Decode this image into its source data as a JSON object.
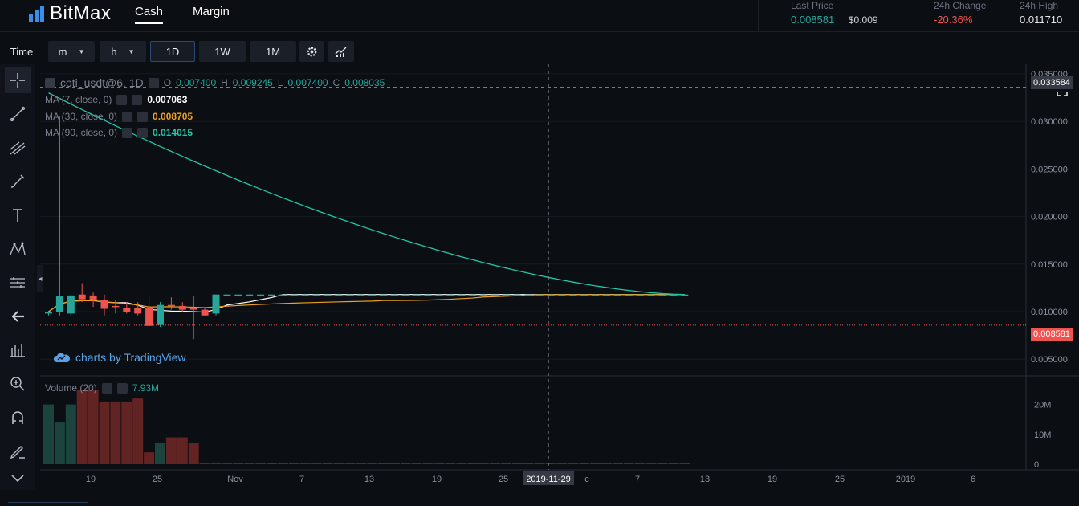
{
  "brand": {
    "name": "BitMax",
    "accent": "#3a8ee6"
  },
  "nav": {
    "cash": "Cash",
    "margin": "Margin"
  },
  "stats": {
    "last_price_label": "Last Price",
    "last_price": "0.008581",
    "last_price_usd": "$0.009",
    "change_label": "24h Change",
    "change": "-20.36%",
    "high_label": "24h High",
    "high": "0.011710"
  },
  "toolbar": {
    "time": "Time",
    "minute": "m",
    "hour": "h",
    "day": "1D",
    "week": "1W",
    "month": "1M",
    "settings_icon": "gear-icon",
    "indicators_icon": "chart-style-icon",
    "fullscreen_icon": "fullscreen-icon"
  },
  "legend": {
    "symbol": "coti_usdt@6, 1D",
    "open_label": "O",
    "open": "0.007400",
    "high_label": "H",
    "high": "0.009245",
    "low_label": "L",
    "low": "0.007400",
    "close_label": "C",
    "close": "0.008035",
    "ma7_label": "MA (7, close, 0)",
    "ma7": "0.007063",
    "ma30_label": "MA (30, close, 0)",
    "ma30": "0.008705",
    "ma90_label": "MA (90, close, 0)",
    "ma90": "0.014015",
    "volume_label": "Volume (20)",
    "volume": "7.93M"
  },
  "watermark": "charts by TradingView",
  "colors": {
    "up": "#26a69a",
    "down": "#ef5350",
    "ma7": "#ffffff",
    "ma30": "#f0a020",
    "ma90": "#1fc9a8",
    "crosshair_tag": "#363a45",
    "price_tag": "#ef5350"
  },
  "price_axis": {
    "ticks": [
      "0.035000",
      "0.030000",
      "0.025000",
      "0.020000",
      "0.015000",
      "0.010000",
      "0.005000"
    ],
    "crosshair_value": "0.033584",
    "current_value": "0.008581"
  },
  "volume_axis": {
    "ticks": [
      "20M",
      "10M",
      "0"
    ]
  },
  "time_axis": {
    "labels": [
      "19",
      "25",
      "Nov",
      "7",
      "13",
      "19",
      "25",
      "c",
      "7",
      "13",
      "19",
      "25",
      "2019",
      "6"
    ],
    "crosshair_date": "2019-11-29"
  },
  "chart_data": {
    "type": "candlestick",
    "symbol": "coti_usdt@6",
    "interval": "1D",
    "y_range": [
      0.0035,
      0.0355
    ],
    "volume_range_millions": [
      0,
      25
    ],
    "candles": [
      {
        "o": 0.0098,
        "h": 0.01,
        "l": 0.0096,
        "c": 0.01,
        "v": 20
      },
      {
        "o": 0.01,
        "h": 0.0305,
        "l": 0.0096,
        "c": 0.0116,
        "v": 14
      },
      {
        "o": 0.0098,
        "h": 0.0118,
        "l": 0.0095,
        "c": 0.0117,
        "v": 20
      },
      {
        "o": 0.0118,
        "h": 0.013,
        "l": 0.011,
        "c": 0.0113,
        "v": 25
      },
      {
        "o": 0.0117,
        "h": 0.012,
        "l": 0.0105,
        "c": 0.0112,
        "v": 25
      },
      {
        "o": 0.0112,
        "h": 0.0118,
        "l": 0.0096,
        "c": 0.0103,
        "v": 21
      },
      {
        "o": 0.0106,
        "h": 0.0112,
        "l": 0.0098,
        "c": 0.0105,
        "v": 21
      },
      {
        "o": 0.0104,
        "h": 0.011,
        "l": 0.0098,
        "c": 0.01,
        "v": 21
      },
      {
        "o": 0.0104,
        "h": 0.011,
        "l": 0.0096,
        "c": 0.0098,
        "v": 22
      },
      {
        "o": 0.0104,
        "h": 0.0117,
        "l": 0.0084,
        "c": 0.0085,
        "v": 4
      },
      {
        "o": 0.0086,
        "h": 0.011,
        "l": 0.0084,
        "c": 0.0107,
        "v": 7
      },
      {
        "o": 0.0107,
        "h": 0.0115,
        "l": 0.0102,
        "c": 0.0106,
        "v": 9
      },
      {
        "o": 0.0106,
        "h": 0.011,
        "l": 0.01,
        "c": 0.0102,
        "v": 9
      },
      {
        "o": 0.0104,
        "h": 0.0117,
        "l": 0.0071,
        "c": 0.0102,
        "v": 7
      },
      {
        "o": 0.0102,
        "h": 0.0105,
        "l": 0.0096,
        "c": 0.0096,
        "v": 0.5
      },
      {
        "o": 0.0098,
        "h": 0.0118,
        "l": 0.0096,
        "c": 0.0118,
        "v": 0.5
      },
      {
        "o": 0.0118,
        "h": 0.0118,
        "l": 0.0117,
        "c": 0.0118,
        "v": 0.4
      },
      {
        "o": 0.0118,
        "h": 0.0118,
        "l": 0.0117,
        "c": 0.0118,
        "v": 0.4
      },
      {
        "o": 0.0118,
        "h": 0.0118,
        "l": 0.0117,
        "c": 0.0118,
        "v": 0.4
      },
      {
        "o": 0.0118,
        "h": 0.0118,
        "l": 0.0117,
        "c": 0.0118,
        "v": 0.4
      },
      {
        "o": 0.0118,
        "h": 0.0118,
        "l": 0.0117,
        "c": 0.0118,
        "v": 0.4
      },
      {
        "o": 0.0118,
        "h": 0.0118,
        "l": 0.0117,
        "c": 0.0118,
        "v": 0.4
      },
      {
        "o": 0.0118,
        "h": 0.0118,
        "l": 0.0117,
        "c": 0.0118,
        "v": 0.4
      },
      {
        "o": 0.0118,
        "h": 0.0118,
        "l": 0.0117,
        "c": 0.0118,
        "v": 0.4
      },
      {
        "o": 0.0118,
        "h": 0.0118,
        "l": 0.0117,
        "c": 0.0118,
        "v": 0.4
      },
      {
        "o": 0.0118,
        "h": 0.0118,
        "l": 0.0117,
        "c": 0.0118,
        "v": 0.4
      },
      {
        "o": 0.0118,
        "h": 0.0118,
        "l": 0.0117,
        "c": 0.0118,
        "v": 0.4
      },
      {
        "o": 0.0118,
        "h": 0.0118,
        "l": 0.0117,
        "c": 0.0118,
        "v": 0.4
      },
      {
        "o": 0.0118,
        "h": 0.0118,
        "l": 0.0117,
        "c": 0.0118,
        "v": 0.4
      },
      {
        "o": 0.0118,
        "h": 0.0118,
        "l": 0.0117,
        "c": 0.0118,
        "v": 0.4
      },
      {
        "o": 0.0118,
        "h": 0.0118,
        "l": 0.0117,
        "c": 0.0118,
        "v": 0.4
      },
      {
        "o": 0.0118,
        "h": 0.0118,
        "l": 0.0117,
        "c": 0.0118,
        "v": 0.4
      },
      {
        "o": 0.0118,
        "h": 0.0118,
        "l": 0.0117,
        "c": 0.0118,
        "v": 0.4
      },
      {
        "o": 0.0118,
        "h": 0.0118,
        "l": 0.0117,
        "c": 0.0118,
        "v": 0.4
      },
      {
        "o": 0.0118,
        "h": 0.0118,
        "l": 0.0117,
        "c": 0.0118,
        "v": 0.4
      },
      {
        "o": 0.0118,
        "h": 0.0118,
        "l": 0.0117,
        "c": 0.0118,
        "v": 0.4
      },
      {
        "o": 0.0118,
        "h": 0.0118,
        "l": 0.0117,
        "c": 0.0118,
        "v": 0.4
      },
      {
        "o": 0.0118,
        "h": 0.0118,
        "l": 0.0117,
        "c": 0.0118,
        "v": 0.4
      },
      {
        "o": 0.0118,
        "h": 0.0118,
        "l": 0.0117,
        "c": 0.0118,
        "v": 0.4
      },
      {
        "o": 0.0118,
        "h": 0.0118,
        "l": 0.0117,
        "c": 0.0118,
        "v": 0.4
      },
      {
        "o": 0.0118,
        "h": 0.0118,
        "l": 0.0117,
        "c": 0.0118,
        "v": 0.4
      },
      {
        "o": 0.0118,
        "h": 0.0118,
        "l": 0.0117,
        "c": 0.0118,
        "v": 0.4
      },
      {
        "o": 0.0118,
        "h": 0.0118,
        "l": 0.0117,
        "c": 0.0118,
        "v": 0.4
      },
      {
        "o": 0.0118,
        "h": 0.0118,
        "l": 0.0117,
        "c": 0.0118,
        "v": 0.4
      },
      {
        "o": 0.0118,
        "h": 0.0118,
        "l": 0.0117,
        "c": 0.0118,
        "v": 0.4
      },
      {
        "o": 0.0118,
        "h": 0.0118,
        "l": 0.0117,
        "c": 0.0118,
        "v": 0.4
      },
      {
        "o": 0.0118,
        "h": 0.0118,
        "l": 0.0117,
        "c": 0.0118,
        "v": 0.4
      },
      {
        "o": 0.0118,
        "h": 0.0118,
        "l": 0.0117,
        "c": 0.0118,
        "v": 0.4
      },
      {
        "o": 0.0118,
        "h": 0.0118,
        "l": 0.0117,
        "c": 0.0118,
        "v": 0.4
      },
      {
        "o": 0.0118,
        "h": 0.0118,
        "l": 0.0117,
        "c": 0.0118,
        "v": 0.4
      },
      {
        "o": 0.0118,
        "h": 0.0118,
        "l": 0.0117,
        "c": 0.0118,
        "v": 0.4
      },
      {
        "o": 0.0118,
        "h": 0.0118,
        "l": 0.0117,
        "c": 0.0118,
        "v": 0.4
      },
      {
        "o": 0.0118,
        "h": 0.0118,
        "l": 0.0117,
        "c": 0.0118,
        "v": 0.4
      },
      {
        "o": 0.0118,
        "h": 0.0118,
        "l": 0.0117,
        "c": 0.0118,
        "v": 0.4
      },
      {
        "o": 0.0118,
        "h": 0.0118,
        "l": 0.0117,
        "c": 0.0118,
        "v": 0.4
      },
      {
        "o": 0.0118,
        "h": 0.0118,
        "l": 0.0117,
        "c": 0.0118,
        "v": 0.4
      },
      {
        "o": 0.0118,
        "h": 0.0118,
        "l": 0.0117,
        "c": 0.0118,
        "v": 0.4
      },
      {
        "o": 0.0118,
        "h": 0.0118,
        "l": 0.0117,
        "c": 0.0118,
        "v": 0.4
      },
      {
        "o": 0.0118,
        "h": 0.0118,
        "l": 0.0117,
        "c": 0.0118,
        "v": 0.4
      },
      {
        "o": 0.0118,
        "h": 0.0118,
        "l": 0.0117,
        "c": 0.0118,
        "v": 0.4
      },
      {
        "o": 0.0118,
        "h": 0.0118,
        "l": 0.0117,
        "c": 0.0118,
        "v": 0.4
      },
      {
        "o": 0.0118,
        "h": 0.0118,
        "l": 0.0117,
        "c": 0.0118,
        "v": 0.4
      },
      {
        "o": 0.0118,
        "h": 0.0118,
        "l": 0.0117,
        "c": 0.0118,
        "v": 0.4
      },
      {
        "o": 0.0118,
        "h": 0.0118,
        "l": 0.0117,
        "c": 0.0118,
        "v": 0.4
      },
      {
        "o": 0.0118,
        "h": 0.0118,
        "l": 0.0117,
        "c": 0.0118,
        "v": 0.4
      },
      {
        "o": 0.0118,
        "h": 0.0118,
        "l": 0.0117,
        "c": 0.0118,
        "v": 0.4
      },
      {
        "o": 0.0118,
        "h": 0.0118,
        "l": 0.0117,
        "c": 0.0118,
        "v": 0.4
      },
      {
        "o": 0.0118,
        "h": 0.0118,
        "l": 0.0117,
        "c": 0.0118,
        "v": 0.4
      },
      {
        "o": 0.0118,
        "h": 0.0118,
        "l": 0.0117,
        "c": 0.0118,
        "v": 0.4
      },
      {
        "o": 0.0118,
        "h": 0.0118,
        "l": 0.0117,
        "c": 0.0118,
        "v": 0.4
      },
      {
        "o": 0.0118,
        "h": 0.0118,
        "l": 0.0117,
        "c": 0.0118,
        "v": 0.4
      },
      {
        "o": 0.0118,
        "h": 0.0118,
        "l": 0.0117,
        "c": 0.0118,
        "v": 0.4
      },
      {
        "o": 0.0118,
        "h": 0.0118,
        "l": 0.0117,
        "c": 0.0118,
        "v": 0.4
      },
      {
        "o": 0.0118,
        "h": 0.0118,
        "l": 0.0117,
        "c": 0.0118,
        "v": 0.4
      },
      {
        "o": 0.0118,
        "h": 0.0118,
        "l": 0.0117,
        "c": 0.0118,
        "v": 0.4
      },
      {
        "o": 0.0118,
        "h": 0.0118,
        "l": 0.0117,
        "c": 0.0118,
        "v": 0.4
      },
      {
        "o": 0.0118,
        "h": 0.0118,
        "l": 0.0117,
        "c": 0.0118,
        "v": 0.4
      },
      {
        "o": 0.0118,
        "h": 0.0118,
        "l": 0.0117,
        "c": 0.0118,
        "v": 0.4
      },
      {
        "o": 0.0118,
        "h": 0.0118,
        "l": 0.0117,
        "c": 0.0118,
        "v": 0.4
      }
    ]
  }
}
